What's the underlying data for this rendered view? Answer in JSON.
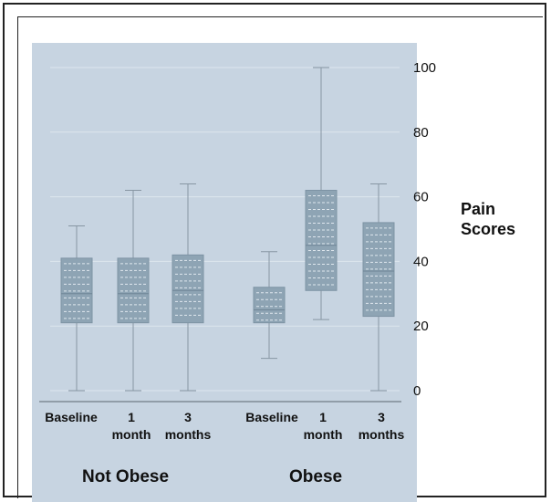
{
  "chart_data": {
    "type": "box",
    "ylabel": [
      "Pain",
      "Scores"
    ],
    "ylim": [
      0,
      100
    ],
    "yticks": [
      0,
      20,
      40,
      60,
      80,
      100
    ],
    "grid": true,
    "groups": [
      "Not Obese",
      "Obese"
    ],
    "categories": [
      {
        "group": "Not Obese",
        "label": [
          "Baseline"
        ],
        "min": 0,
        "q1": 21,
        "median": 30,
        "q3": 41,
        "max": 51
      },
      {
        "group": "Not Obese",
        "label": [
          "1",
          "month"
        ],
        "min": 0,
        "q1": 21,
        "median": 30,
        "q3": 41,
        "max": 62
      },
      {
        "group": "Not Obese",
        "label": [
          "3",
          "months"
        ],
        "min": 0,
        "q1": 21,
        "median": 31,
        "q3": 42,
        "max": 64
      },
      {
        "group": "Obese",
        "label": [
          "Baseline"
        ],
        "min": 10,
        "q1": 21,
        "median": 25,
        "q3": 32,
        "max": 43
      },
      {
        "group": "Obese",
        "label": [
          "1",
          "month"
        ],
        "min": 22,
        "q1": 31,
        "median": 45,
        "q3": 62,
        "max": 100
      },
      {
        "group": "Obese",
        "label": [
          "3",
          "months"
        ],
        "min": 0,
        "q1": 23,
        "median": 37,
        "q3": 52,
        "max": 64
      }
    ],
    "colors": {
      "background": "#c7d4e1",
      "box": "#8ea4b4",
      "box_edge": "#7d93a4",
      "whisker": "#8796a3",
      "grid": "#dde6ee"
    }
  }
}
